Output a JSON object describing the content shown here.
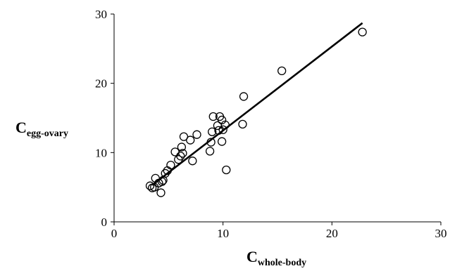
{
  "chart_data": {
    "type": "scatter",
    "title": "",
    "xlabel": {
      "main": "C",
      "sub": "whole-body"
    },
    "ylabel": {
      "main": "C",
      "sub": "egg-ovary"
    },
    "xlim": [
      0,
      30
    ],
    "ylim": [
      0,
      30
    ],
    "x_ticks": [
      "0",
      "10",
      "20",
      "30"
    ],
    "y_ticks": [
      "0",
      "10",
      "20",
      "30"
    ],
    "grid": false,
    "legend": "none",
    "colors": {
      "axis": "#000000",
      "marker": "#000000",
      "line": "#000000"
    },
    "marker": "open-circle",
    "points": [
      {
        "x": 3.3,
        "y": 5.2
      },
      {
        "x": 3.5,
        "y": 4.9
      },
      {
        "x": 3.7,
        "y": 5.0
      },
      {
        "x": 3.8,
        "y": 6.3
      },
      {
        "x": 4.1,
        "y": 5.6
      },
      {
        "x": 4.3,
        "y": 4.2
      },
      {
        "x": 4.4,
        "y": 5.8
      },
      {
        "x": 4.5,
        "y": 6.0
      },
      {
        "x": 4.7,
        "y": 7.0
      },
      {
        "x": 4.9,
        "y": 7.4
      },
      {
        "x": 5.2,
        "y": 8.2
      },
      {
        "x": 5.6,
        "y": 10.1
      },
      {
        "x": 5.9,
        "y": 9.0
      },
      {
        "x": 6.1,
        "y": 9.5
      },
      {
        "x": 6.2,
        "y": 10.8
      },
      {
        "x": 6.3,
        "y": 9.9
      },
      {
        "x": 6.4,
        "y": 12.3
      },
      {
        "x": 7.0,
        "y": 11.8
      },
      {
        "x": 7.2,
        "y": 8.8
      },
      {
        "x": 7.6,
        "y": 12.6
      },
      {
        "x": 8.8,
        "y": 10.2
      },
      {
        "x": 8.9,
        "y": 11.5
      },
      {
        "x": 9.0,
        "y": 13.0
      },
      {
        "x": 9.1,
        "y": 15.2
      },
      {
        "x": 9.5,
        "y": 13.9
      },
      {
        "x": 9.6,
        "y": 13.2
      },
      {
        "x": 9.7,
        "y": 15.2
      },
      {
        "x": 9.9,
        "y": 14.7
      },
      {
        "x": 9.9,
        "y": 11.6
      },
      {
        "x": 10.0,
        "y": 13.3
      },
      {
        "x": 10.2,
        "y": 14.0
      },
      {
        "x": 10.3,
        "y": 7.5
      },
      {
        "x": 11.8,
        "y": 14.1
      },
      {
        "x": 11.9,
        "y": 18.1
      },
      {
        "x": 15.4,
        "y": 21.8
      },
      {
        "x": 22.8,
        "y": 27.4
      }
    ],
    "trendline": {
      "x_start": 3.5,
      "y_start": 5.3,
      "x_end": 22.8,
      "y_end": 28.7
    }
  }
}
